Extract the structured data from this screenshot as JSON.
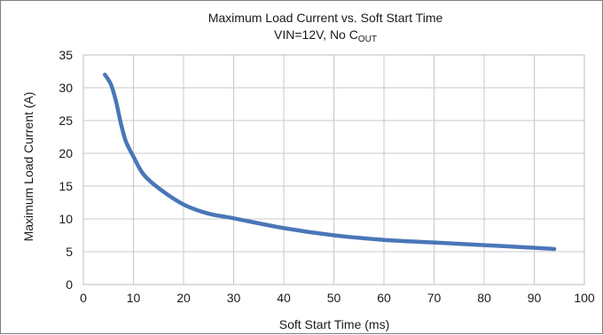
{
  "chart_data": {
    "type": "line",
    "title": "Maximum Load Current vs. Soft Start Time",
    "subtitle": "VIN=12V, No C",
    "subtitle_subscript": "OUT",
    "xlabel": "Soft Start Time (ms)",
    "ylabel": "Maximum Load Current (A)",
    "xlim": [
      0,
      100
    ],
    "ylim": [
      0,
      35
    ],
    "xticks": [
      0,
      10,
      20,
      30,
      40,
      50,
      60,
      70,
      80,
      90,
      100
    ],
    "yticks": [
      0,
      5,
      10,
      15,
      20,
      25,
      30,
      35
    ],
    "grid": true,
    "legend": "none",
    "line_color": "#4a76b8",
    "series": [
      {
        "x": [
          4.3,
          5.5,
          6.5,
          7.5,
          8.5,
          10,
          12,
          15,
          20,
          25,
          30,
          40,
          50,
          60,
          70,
          80,
          90,
          94
        ],
        "values": [
          32.0,
          30.5,
          28.0,
          24.5,
          21.8,
          19.5,
          16.8,
          14.7,
          12.2,
          10.8,
          10.1,
          8.6,
          7.5,
          6.8,
          6.4,
          6.0,
          5.6,
          5.4
        ]
      }
    ]
  }
}
